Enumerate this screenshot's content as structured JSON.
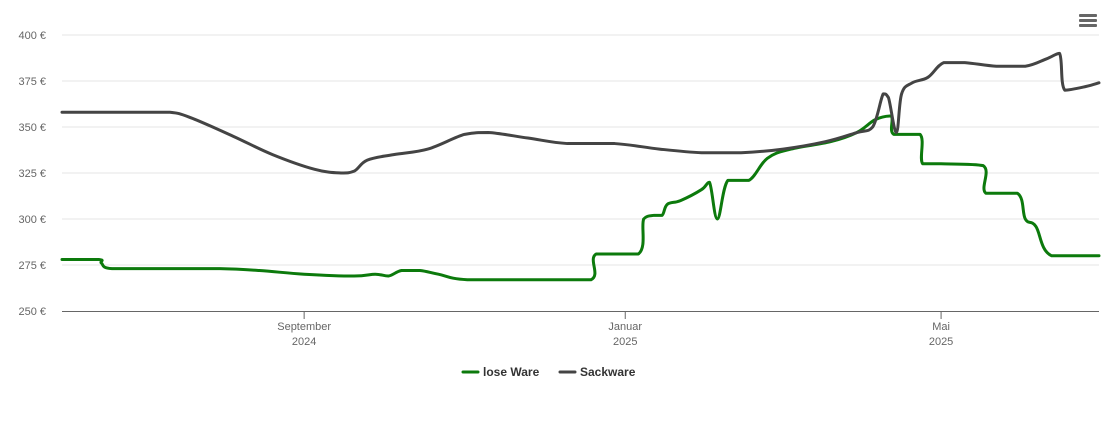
{
  "chart_data": {
    "type": "line",
    "title": "",
    "xlabel": "",
    "ylabel": "",
    "ylim": [
      250,
      400
    ],
    "y_ticks": [
      250,
      275,
      300,
      325,
      350,
      375,
      400
    ],
    "y_tick_suffix": " €",
    "x_range": [
      "2024-06-01",
      "2025-06-30"
    ],
    "x_ticks": [
      {
        "date": "2024-09-01",
        "label_line1": "September",
        "label_line2": "2024"
      },
      {
        "date": "2025-01-01",
        "label_line1": "Januar",
        "label_line2": "2025"
      },
      {
        "date": "2025-05-01",
        "label_line1": "Mai",
        "label_line2": "2025"
      }
    ],
    "grid": true,
    "legend_position": "bottom-center",
    "series": [
      {
        "name": "lose Ware",
        "color": "#0c7a0c",
        "points": [
          [
            "2024-06-01",
            278
          ],
          [
            "2024-06-15",
            278
          ],
          [
            "2024-06-16",
            276
          ],
          [
            "2024-06-20",
            273
          ],
          [
            "2024-07-10",
            273
          ],
          [
            "2024-07-31",
            273
          ],
          [
            "2024-08-15",
            272
          ],
          [
            "2024-09-01",
            270
          ],
          [
            "2024-09-20",
            269
          ],
          [
            "2024-09-28",
            270
          ],
          [
            "2024-10-03",
            269
          ],
          [
            "2024-10-08",
            272
          ],
          [
            "2024-10-15",
            272
          ],
          [
            "2024-10-22",
            270
          ],
          [
            "2024-11-02",
            267
          ],
          [
            "2024-11-30",
            267
          ],
          [
            "2024-12-19",
            267
          ],
          [
            "2024-12-21",
            281
          ],
          [
            "2025-01-06",
            281
          ],
          [
            "2025-01-08",
            300
          ],
          [
            "2025-01-12",
            302
          ],
          [
            "2025-01-15",
            302
          ],
          [
            "2025-01-17",
            308
          ],
          [
            "2025-01-22",
            310
          ],
          [
            "2025-01-30",
            316
          ],
          [
            "2025-02-02",
            320
          ],
          [
            "2025-02-05",
            300
          ],
          [
            "2025-02-09",
            321
          ],
          [
            "2025-02-17",
            321
          ],
          [
            "2025-02-24",
            333
          ],
          [
            "2025-03-05",
            338
          ],
          [
            "2025-03-20",
            342
          ],
          [
            "2025-03-30",
            347
          ],
          [
            "2025-04-06",
            354
          ],
          [
            "2025-04-12",
            356
          ],
          [
            "2025-04-13",
            346
          ],
          [
            "2025-04-23",
            346
          ],
          [
            "2025-04-24",
            330
          ],
          [
            "2025-05-01",
            330
          ],
          [
            "2025-05-17",
            329
          ],
          [
            "2025-05-18",
            314
          ],
          [
            "2025-05-30",
            314
          ],
          [
            "2025-06-02",
            300
          ],
          [
            "2025-06-06",
            296
          ],
          [
            "2025-06-12",
            280
          ],
          [
            "2025-06-30",
            280
          ]
        ]
      },
      {
        "name": "Sackware",
        "color": "#444444",
        "points": [
          [
            "2024-06-01",
            358
          ],
          [
            "2024-06-30",
            358
          ],
          [
            "2024-07-12",
            358
          ],
          [
            "2024-07-20",
            355
          ],
          [
            "2024-08-05",
            345
          ],
          [
            "2024-08-20",
            335
          ],
          [
            "2024-09-05",
            327
          ],
          [
            "2024-09-15",
            325
          ],
          [
            "2024-09-20",
            326
          ],
          [
            "2024-09-25",
            332
          ],
          [
            "2024-10-05",
            335
          ],
          [
            "2024-10-18",
            338
          ],
          [
            "2024-11-01",
            346
          ],
          [
            "2024-11-10",
            347
          ],
          [
            "2024-11-25",
            344
          ],
          [
            "2024-12-10",
            341
          ],
          [
            "2024-12-28",
            341
          ],
          [
            "2025-01-14",
            338
          ],
          [
            "2025-01-30",
            336
          ],
          [
            "2025-02-14",
            336
          ],
          [
            "2025-03-02",
            338
          ],
          [
            "2025-03-18",
            342
          ],
          [
            "2025-03-30",
            347
          ],
          [
            "2025-04-05",
            350
          ],
          [
            "2025-04-09",
            368
          ],
          [
            "2025-04-11",
            366
          ],
          [
            "2025-04-14",
            347
          ],
          [
            "2025-04-16",
            368
          ],
          [
            "2025-04-20",
            374
          ],
          [
            "2025-04-26",
            377
          ],
          [
            "2025-05-02",
            385
          ],
          [
            "2025-05-10",
            385
          ],
          [
            "2025-05-22",
            383
          ],
          [
            "2025-06-02",
            383
          ],
          [
            "2025-06-10",
            387
          ],
          [
            "2025-06-15",
            390
          ],
          [
            "2025-06-17",
            370
          ],
          [
            "2025-06-25",
            372
          ],
          [
            "2025-06-30",
            374
          ]
        ]
      }
    ]
  },
  "toolbar": {
    "menu_icon": "hamburger-menu-icon"
  }
}
